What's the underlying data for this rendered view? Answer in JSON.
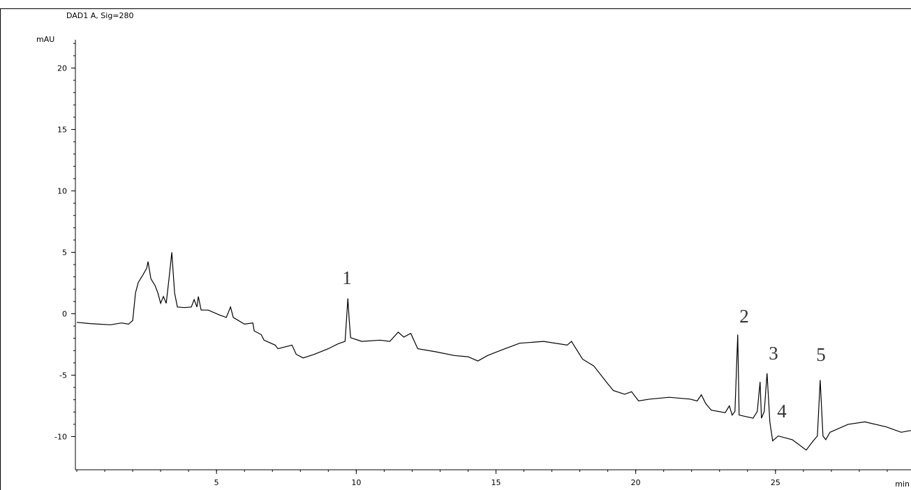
{
  "chart_data": {
    "type": "line",
    "title": "DAD1 A, Sig=280",
    "y_label": "mAU",
    "x_label": "min",
    "x": [
      0,
      0.48,
      1.2,
      1.6,
      1.85,
      2.0,
      2.1,
      2.2,
      2.35,
      2.5,
      2.55,
      2.65,
      2.8,
      2.9,
      3.0,
      3.1,
      3.2,
      3.3,
      3.4,
      3.5,
      3.6,
      3.85,
      4.1,
      4.2,
      4.3,
      4.35,
      4.45,
      4.7,
      5.1,
      5.35,
      5.5,
      5.6,
      6.0,
      6.3,
      6.35,
      6.6,
      6.7,
      7.1,
      7.2,
      7.7,
      7.85,
      8.1,
      8.5,
      9.0,
      9.35,
      9.6,
      9.65,
      9.7,
      9.75,
      9.8,
      10.2,
      10.85,
      11.2,
      11.5,
      11.7,
      11.95,
      12.2,
      12.85,
      13.5,
      14.0,
      14.35,
      14.7,
      15.2,
      15.85,
      16.7,
      17.55,
      17.7,
      18.1,
      18.5,
      19.0,
      19.2,
      19.6,
      19.85,
      20.1,
      20.5,
      21.2,
      21.95,
      22.2,
      22.35,
      22.5,
      22.7,
      23.2,
      23.35,
      23.45,
      23.55,
      23.65,
      23.7,
      24.2,
      24.35,
      24.45,
      24.5,
      24.6,
      24.7,
      24.8,
      24.9,
      25.1,
      25.6,
      26.1,
      26.35,
      26.5,
      26.6,
      26.7,
      26.8,
      26.95,
      27.6,
      28.2,
      28.95,
      29.5,
      29.85
    ],
    "series": [
      {
        "name": "DAD1 A, Sig=280",
        "color": "#000000",
        "values": [
          -0.7,
          -0.8,
          -0.9,
          -0.75,
          -0.85,
          -0.55,
          1.7,
          2.55,
          3.1,
          3.7,
          4.25,
          2.85,
          2.3,
          1.7,
          0.85,
          1.4,
          0.85,
          2.85,
          5.0,
          1.7,
          0.55,
          0.5,
          0.55,
          1.15,
          0.55,
          1.4,
          0.3,
          0.3,
          -0.1,
          -0.3,
          0.55,
          -0.3,
          -0.85,
          -0.75,
          -1.4,
          -1.7,
          -2.15,
          -2.55,
          -2.85,
          -2.55,
          -3.3,
          -3.6,
          -3.3,
          -2.85,
          -2.45,
          -2.25,
          -0.55,
          1.25,
          -0.55,
          -1.95,
          -2.25,
          -2.15,
          -2.25,
          -1.5,
          -1.9,
          -1.6,
          -2.85,
          -3.1,
          -3.4,
          -3.5,
          -3.85,
          -3.4,
          -2.95,
          -2.4,
          -2.25,
          -2.55,
          -2.25,
          -3.7,
          -4.25,
          -5.7,
          -6.25,
          -6.55,
          -6.35,
          -7.1,
          -6.95,
          -6.8,
          -6.95,
          -7.1,
          -6.6,
          -7.3,
          -7.85,
          -8.05,
          -7.5,
          -8.25,
          -7.95,
          -1.7,
          -8.25,
          -8.5,
          -7.95,
          -5.55,
          -8.5,
          -7.95,
          -4.85,
          -8.8,
          -10.35,
          -9.95,
          -10.25,
          -11.1,
          -10.35,
          -9.95,
          -5.4,
          -9.95,
          -10.25,
          -9.65,
          -9.0,
          -8.8,
          -9.2,
          -9.65,
          -9.5
        ]
      }
    ],
    "xlim": [
      0,
      29.85
    ],
    "ylim": [
      -12.7,
      22.3
    ],
    "xticks": [
      5,
      10,
      15,
      20,
      25
    ],
    "yticks": [
      -10,
      -5,
      0,
      5,
      10,
      15,
      20
    ],
    "grid": false,
    "annotations": [
      "1",
      "2",
      "3",
      "4",
      "5"
    ]
  }
}
